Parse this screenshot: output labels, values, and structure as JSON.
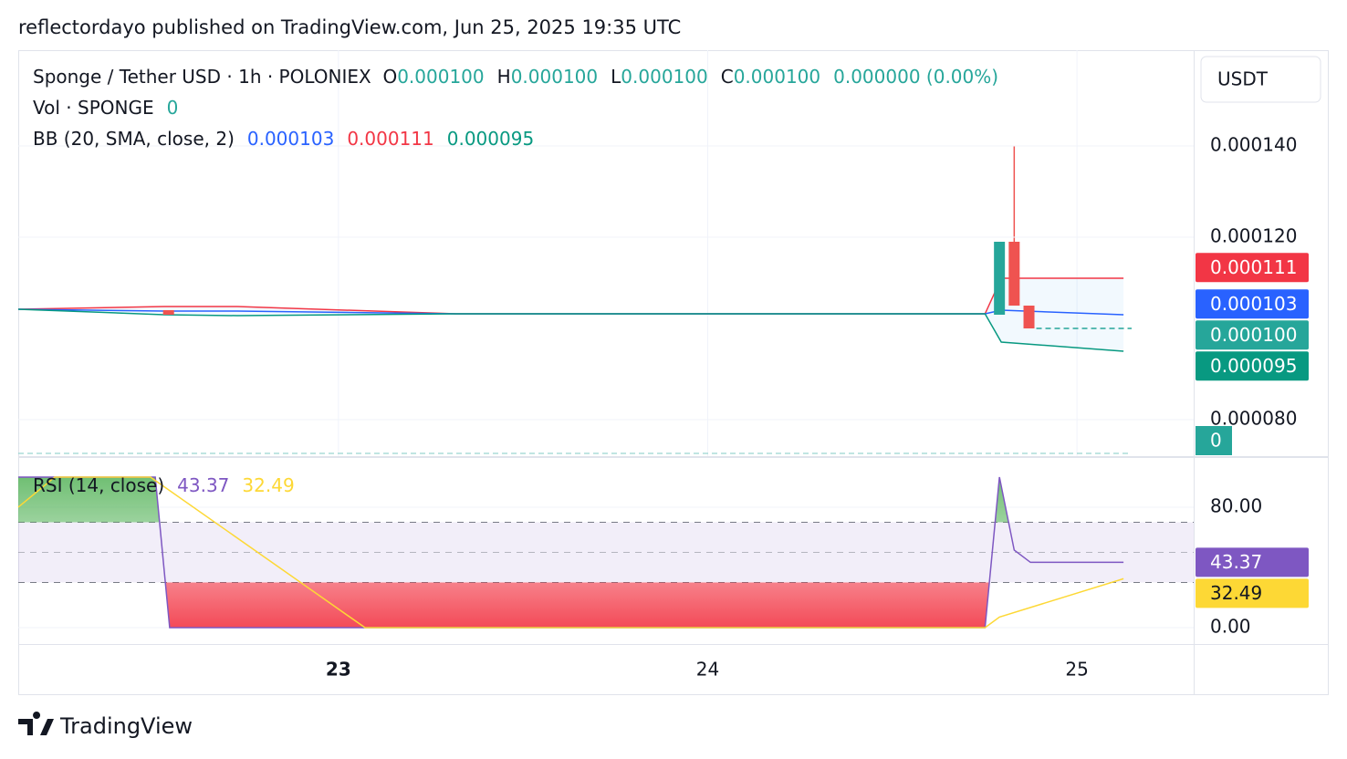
{
  "header": {
    "publisher": "reflectordayo published on TradingView.com, Jun 25, 2025 19:35 UTC"
  },
  "currency": "USDT",
  "brand": "TradingView",
  "legend": {
    "symbol": "Sponge / Tether USD · 1h · POLONIEX",
    "open_label": "O",
    "open": "0.000100",
    "high_label": "H",
    "high": "0.000100",
    "low_label": "L",
    "low": "0.000100",
    "close_label": "C",
    "close": "0.000100",
    "change": "0.000000 (0.00%)",
    "volume_name": "Vol · SPONGE",
    "volume": "0",
    "bb_name": "BB (20, SMA, close, 2)",
    "bb_basis": "0.000103",
    "bb_upper": "0.000111",
    "bb_lower": "0.000095",
    "rsi_name": "RSI (14, close)",
    "rsi": "43.37",
    "rsi_ma": "32.49"
  },
  "chart_data": [
    {
      "type": "candlestick",
      "x": [
        22.54,
        24.79,
        24.83,
        24.87
      ],
      "open": [
        0.000104,
        0.000103,
        0.000119,
        0.000105
      ],
      "high": [
        0.000104,
        0.000119,
        0.00014,
        0.000105
      ],
      "low": [
        0.000103,
        0.000103,
        0.000105,
        0.0001
      ],
      "close": [
        0.000103,
        0.000119,
        0.000105,
        0.0001
      ],
      "up_color": "#26a69a",
      "down_color": "#ef5350",
      "bands": [
        {
          "color": "#f23645",
          "x": [
            22.133,
            22.528,
            22.726,
            23.319,
            24.751,
            24.795,
            25.126
          ],
          "values": [
            0.0001042,
            0.0001048,
            0.0001048,
            0.0001032,
            0.0001032,
            0.000111,
            0.000111
          ]
        },
        {
          "color": "#2962ff",
          "x": [
            22.133,
            22.528,
            22.726,
            23.319,
            24.751,
            24.795,
            25.126
          ],
          "values": [
            0.0001042,
            0.0001038,
            0.0001038,
            0.0001032,
            0.0001032,
            0.000104,
            0.000103
          ]
        },
        {
          "color": "#089981",
          "x": [
            22.133,
            22.528,
            22.726,
            23.319,
            24.751,
            24.795,
            25.126
          ],
          "values": [
            0.0001042,
            0.000103,
            0.0001028,
            0.0001032,
            0.0001032,
            9.7e-05,
            9.5e-05
          ]
        }
      ],
      "last_price": 0.0001,
      "badges": [
        {
          "value": 0.000111,
          "color": "#f23645"
        },
        {
          "value": 0.000103,
          "color": "#2962ff"
        },
        {
          "value": 0.0001,
          "label": "0.000100",
          "color": "#26a69a"
        },
        {
          "value": 9.5e-05,
          "color": "#089981"
        }
      ],
      "xlim": [
        22.133,
        25.316
      ],
      "xticks": [
        23,
        24,
        25
      ],
      "ylim": [
        7.2e-05,
        0.000161
      ],
      "yticks": [
        {
          "value": 8e-05,
          "label": "0.000080"
        },
        {
          "value": 0.00012,
          "label": "0.000120"
        },
        {
          "value": 0.00014,
          "label": "0.000140"
        }
      ],
      "grid": true
    },
    {
      "type": "line",
      "series": [
        {
          "color": "#7e57c2",
          "x": [
            22.133,
            22.504,
            22.543,
            24.751,
            24.79,
            24.83,
            24.874,
            25.126
          ],
          "values": [
            100,
            100,
            0,
            0,
            100,
            51.5,
            43.37,
            43.37
          ]
        },
        {
          "color": "#fdd835",
          "x": [
            22.133,
            22.232,
            22.491,
            23.072,
            24.751,
            24.79,
            25.126
          ],
          "values": [
            80,
            100,
            100,
            0,
            0,
            7,
            32.49
          ]
        }
      ],
      "levels": [
        70,
        50,
        30
      ],
      "badges": [
        {
          "value": 43.37,
          "color": "#7e57c2"
        },
        {
          "value": 32.49,
          "color": "#fdd835"
        }
      ],
      "xlim": [
        22.133,
        25.316
      ],
      "ylim": [
        -10.9,
        112.7
      ],
      "yticks": [
        {
          "value": 0,
          "label": "0.00"
        },
        {
          "value": 80,
          "label": "80.00"
        }
      ],
      "grid": true
    }
  ]
}
